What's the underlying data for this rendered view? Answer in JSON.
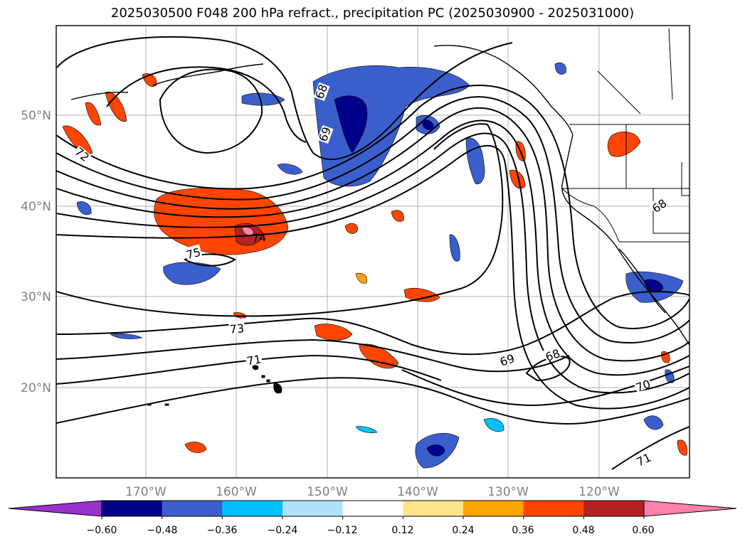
{
  "title": "2025030500 F048 200 hPa refract., precipitation PC (2025030900 - 2025031000)",
  "lat_labels": [
    "50°N",
    "40°N",
    "30°N",
    "20°N"
  ],
  "lon_labels": [
    "170°W",
    "160°W",
    "150°W",
    "140°W",
    "130°W",
    "120°W"
  ],
  "contour_labels": [
    "68",
    "69",
    "72",
    "75",
    "74",
    "73",
    "71",
    "69",
    "68",
    "70",
    "71",
    "68"
  ],
  "colorbar": {
    "ticks": [
      "−0.60",
      "−0.48",
      "−0.36",
      "−0.24",
      "−0.12",
      "0.12",
      "0.24",
      "0.36",
      "0.48",
      "0.60"
    ],
    "colors": [
      "#9932cc",
      "#00008b",
      "#3a5fcd",
      "#00bfff",
      "#b0e2ff",
      "#ffffff",
      "#ffe58a",
      "#ffa500",
      "#ff4500",
      "#b22222",
      "#ff82ab"
    ]
  }
}
